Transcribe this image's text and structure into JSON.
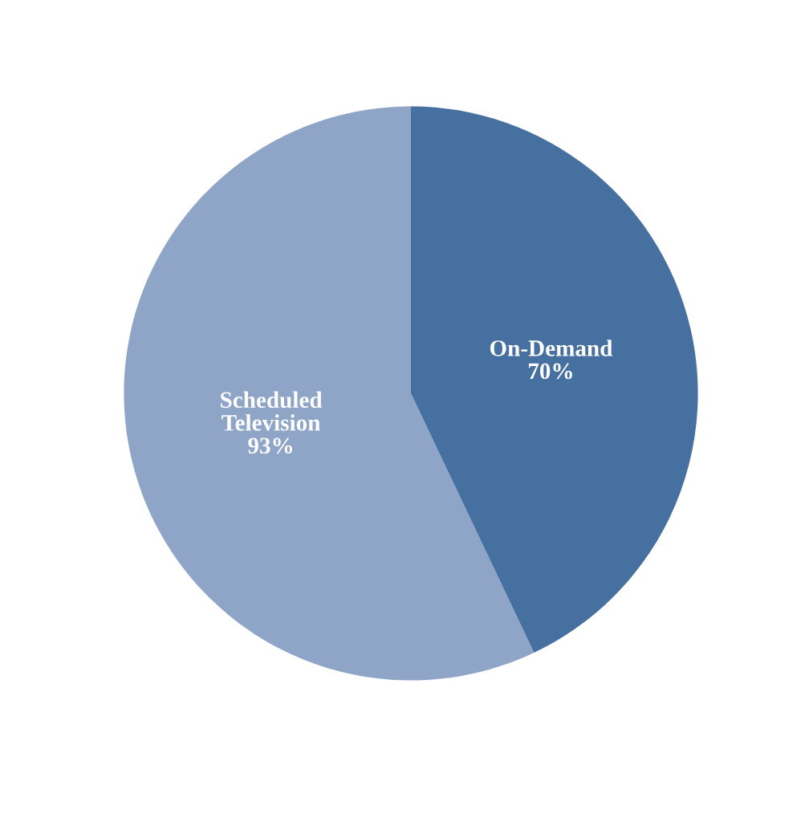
{
  "chart_data": {
    "type": "pie",
    "categories": [
      "Scheduled\nTelevision",
      "On-Demand"
    ],
    "values": [
      93,
      70
    ],
    "value_labels": [
      "93%",
      "70%"
    ],
    "colors": [
      "#8fa5c8",
      "#46709f"
    ]
  }
}
